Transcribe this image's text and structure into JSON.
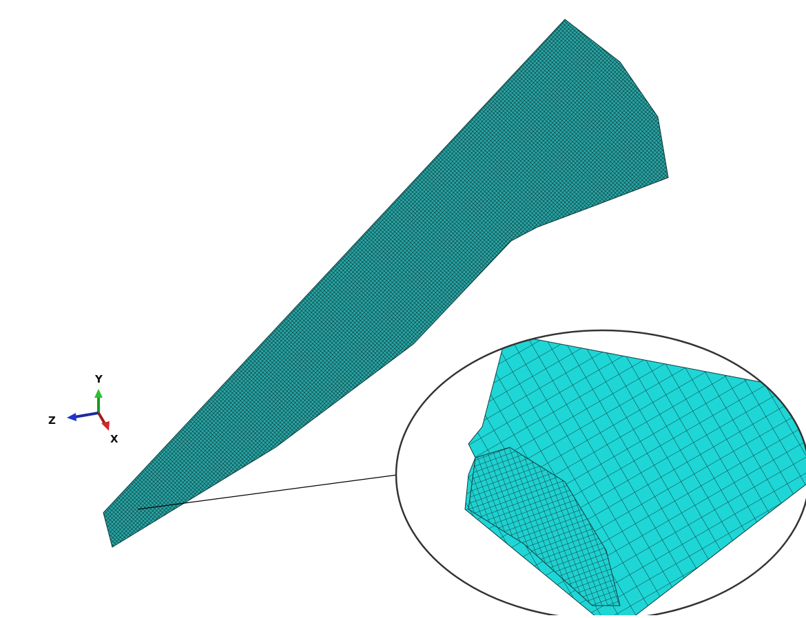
{
  "triad": {
    "y": "Y",
    "z": "Z",
    "x": "X"
  }
}
